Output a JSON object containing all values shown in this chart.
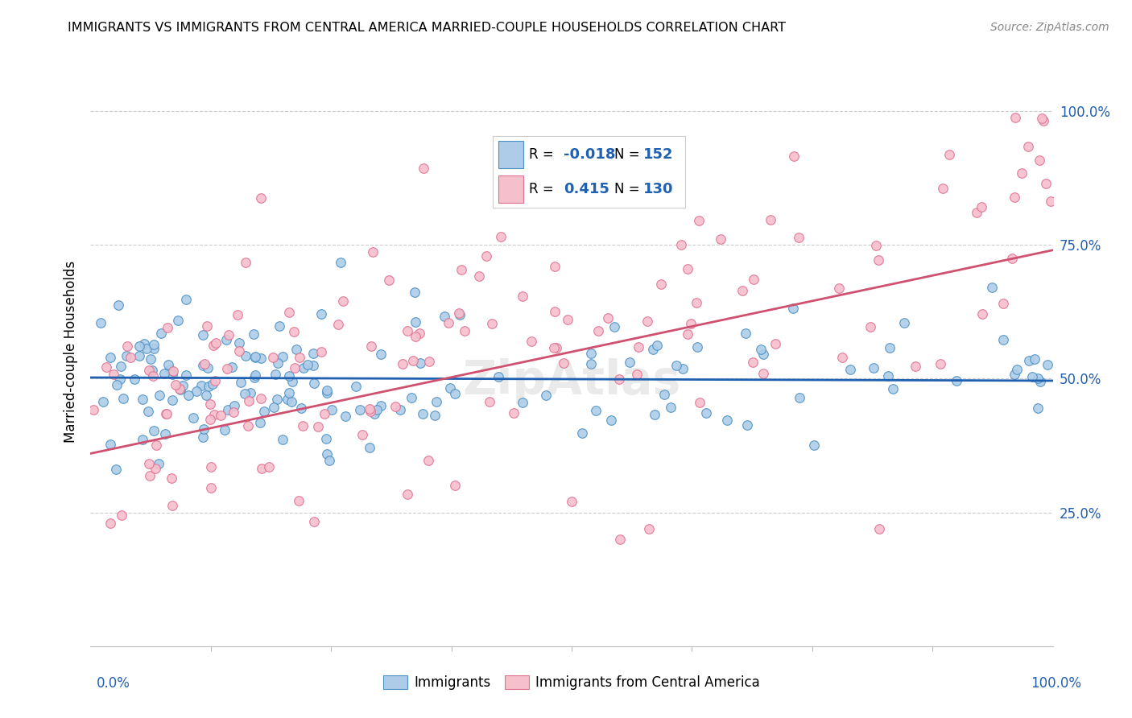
{
  "title": "IMMIGRANTS VS IMMIGRANTS FROM CENTRAL AMERICA MARRIED-COUPLE HOUSEHOLDS CORRELATION CHART",
  "source": "Source: ZipAtlas.com",
  "ylabel": "Married-couple Households",
  "blue_R": -0.018,
  "blue_N": 152,
  "pink_R": 0.415,
  "pink_N": 130,
  "blue_color": "#aecce8",
  "pink_color": "#f5bfcc",
  "blue_edge_color": "#4a90c4",
  "pink_edge_color": "#e07090",
  "blue_line_color": "#2060b0",
  "pink_line_color": "#d05070",
  "watermark": "ZipAtlas",
  "title_fontsize": 11.5,
  "source_fontsize": 10,
  "label_fontsize": 12,
  "tick_fontsize": 12
}
